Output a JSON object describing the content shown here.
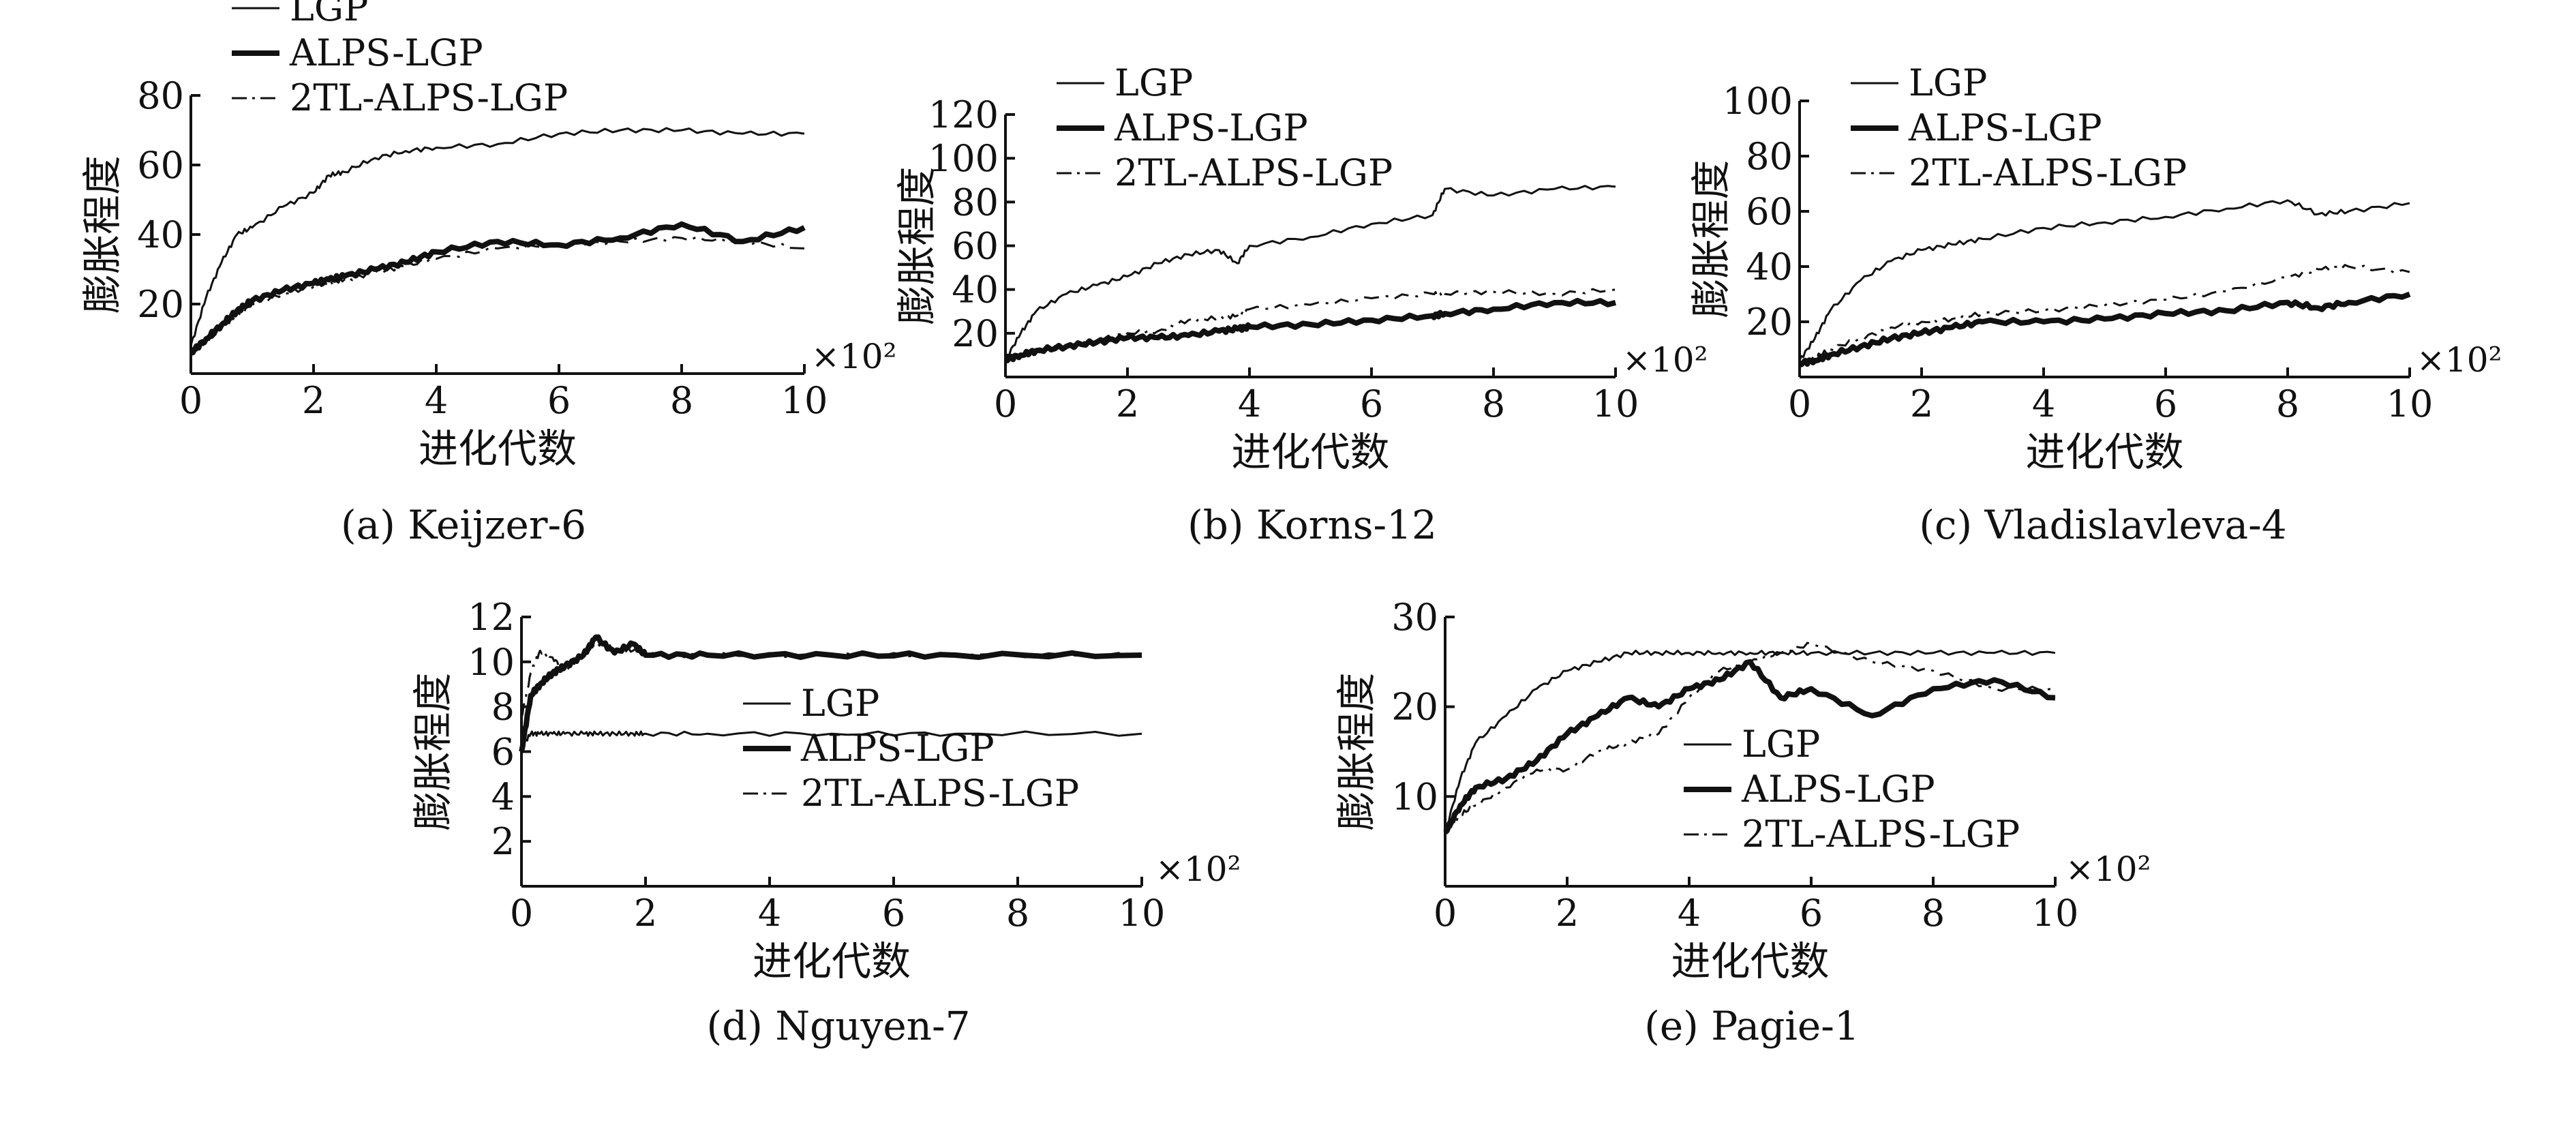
{
  "figure": {
    "x_multiplier": "×10²",
    "legend": [
      "LGP",
      "ALPS-LGP",
      "2TL-ALPS-LGP"
    ]
  },
  "chart_data": [
    {
      "type": "line",
      "caption": "(a) Keijzer-6",
      "xlabel": "进化代数",
      "ylabel": "膨胀程度",
      "xlim": [
        0,
        10
      ],
      "ylim": [
        0,
        80
      ],
      "x_ticks": [
        0,
        2,
        4,
        6,
        8,
        10
      ],
      "y_ticks": [
        20,
        40,
        60,
        80
      ],
      "legend_position": "top-left-outside",
      "x": [
        0,
        0.25,
        0.5,
        0.75,
        1,
        1.5,
        2,
        2.25,
        2.5,
        3,
        3.5,
        4,
        5,
        6,
        7,
        8,
        9,
        10
      ],
      "series": [
        {
          "name": "LGP",
          "values": [
            8,
            22,
            32,
            40,
            42,
            48,
            52,
            57,
            58,
            62,
            64,
            65,
            66,
            69,
            70,
            70,
            69,
            69
          ]
        },
        {
          "name": "ALPS-LGP",
          "values": [
            6,
            10,
            14,
            18,
            21,
            24,
            26,
            27,
            28,
            30,
            32,
            35,
            38,
            37,
            39,
            43,
            38,
            42
          ]
        },
        {
          "name": "2TL-ALPS-LGP",
          "values": [
            6,
            9,
            13,
            17,
            20,
            23,
            25,
            26,
            27,
            29,
            31,
            33,
            36,
            37,
            38,
            39,
            38,
            36
          ]
        }
      ]
    },
    {
      "type": "line",
      "caption": "(b) Korns-12",
      "xlabel": "进化代数",
      "ylabel": "膨胀程度",
      "xlim": [
        0,
        10
      ],
      "ylim": [
        0,
        120
      ],
      "x_ticks": [
        0,
        2,
        4,
        6,
        8,
        10
      ],
      "y_ticks": [
        20,
        40,
        60,
        80,
        100,
        120
      ],
      "legend_position": "top-left",
      "x": [
        0,
        0.25,
        0.5,
        1,
        1.5,
        2,
        2.5,
        3,
        3.5,
        3.8,
        4,
        5,
        6,
        7,
        7.2,
        8,
        9,
        10
      ],
      "series": [
        {
          "name": "LGP",
          "values": [
            8,
            20,
            30,
            38,
            42,
            46,
            52,
            56,
            58,
            52,
            60,
            64,
            70,
            74,
            86,
            83,
            86,
            87
          ]
        },
        {
          "name": "ALPS-LGP",
          "values": [
            8,
            10,
            12,
            14,
            16,
            18,
            18,
            19,
            21,
            22,
            23,
            24,
            26,
            28,
            29,
            31,
            34,
            34
          ]
        },
        {
          "name": "2TL-ALPS-LGP",
          "values": [
            8,
            10,
            12,
            14,
            17,
            20,
            21,
            26,
            27,
            28,
            31,
            33,
            36,
            38,
            38,
            39,
            38,
            40
          ]
        }
      ]
    },
    {
      "type": "line",
      "caption": "(c) Vladislavleva-4",
      "xlabel": "进化代数",
      "ylabel": "膨胀程度",
      "xlim": [
        0,
        10
      ],
      "ylim": [
        0,
        100
      ],
      "x_ticks": [
        0,
        2,
        4,
        6,
        8,
        10
      ],
      "y_ticks": [
        20,
        40,
        60,
        80,
        100
      ],
      "legend_position": "top-left",
      "x": [
        0,
        0.25,
        0.5,
        1,
        1.5,
        2,
        2.5,
        3,
        4,
        5,
        6,
        7,
        8,
        8.5,
        9,
        10
      ],
      "series": [
        {
          "name": "LGP",
          "values": [
            6,
            14,
            24,
            35,
            42,
            46,
            48,
            50,
            54,
            56,
            58,
            61,
            64,
            59,
            60,
            63
          ]
        },
        {
          "name": "ALPS-LGP",
          "values": [
            5,
            6,
            8,
            11,
            14,
            16,
            18,
            20,
            20,
            21,
            23,
            24,
            27,
            25,
            27,
            30
          ]
        },
        {
          "name": "2TL-ALPS-LGP",
          "values": [
            5,
            7,
            10,
            14,
            18,
            20,
            21,
            23,
            24,
            26,
            28,
            31,
            36,
            39,
            40,
            38
          ]
        }
      ]
    },
    {
      "type": "line",
      "caption": "(d) Nguyen-7",
      "xlabel": "进化代数",
      "ylabel": "膨胀程度",
      "xlim": [
        0,
        10
      ],
      "ylim": [
        0,
        12
      ],
      "x_ticks": [
        0,
        2,
        4,
        6,
        8,
        10
      ],
      "y_ticks": [
        2,
        4,
        6,
        8,
        10,
        12
      ],
      "legend_position": "right",
      "x": [
        0,
        0.15,
        0.3,
        0.5,
        0.7,
        1,
        1.2,
        1.5,
        1.8,
        2,
        3,
        5,
        7,
        10
      ],
      "series": [
        {
          "name": "LGP",
          "values": [
            6.2,
            6.8,
            6.8,
            6.8,
            6.8,
            6.8,
            6.8,
            6.8,
            6.8,
            6.8,
            6.8,
            6.8,
            6.8,
            6.8
          ]
        },
        {
          "name": "ALPS-LGP",
          "values": [
            6.0,
            8.5,
            9.0,
            9.5,
            9.8,
            10.3,
            11.1,
            10.4,
            10.8,
            10.3,
            10.3,
            10.3,
            10.3,
            10.3
          ]
        },
        {
          "name": "2TL-ALPS-LGP",
          "values": [
            7.5,
            9.5,
            10.5,
            10.2,
            9.6,
            10.4,
            10.8,
            10.6,
            10.5,
            10.3,
            10.3,
            10.3,
            10.3,
            10.3
          ]
        }
      ]
    },
    {
      "type": "line",
      "caption": "(e) Pagie-1",
      "xlabel": "进化代数",
      "ylabel": "膨胀程度",
      "xlim": [
        0,
        10
      ],
      "ylim": [
        0,
        30
      ],
      "x_ticks": [
        0,
        2,
        4,
        6,
        8,
        10
      ],
      "y_ticks": [
        10,
        20,
        30
      ],
      "legend_position": "center",
      "x": [
        0,
        0.25,
        0.5,
        1,
        1.5,
        2,
        2.5,
        3,
        3.5,
        4,
        4.5,
        5,
        5.5,
        6,
        7,
        8,
        9,
        10
      ],
      "series": [
        {
          "name": "LGP",
          "values": [
            6,
            12,
            16,
            19,
            22,
            24,
            25,
            26,
            26,
            26,
            26,
            26,
            26,
            26,
            26,
            26,
            26,
            26
          ]
        },
        {
          "name": "ALPS-LGP",
          "values": [
            6,
            9,
            11,
            12,
            14,
            17,
            19,
            21,
            20,
            22,
            23,
            25,
            21,
            22,
            19,
            22,
            23,
            21
          ]
        },
        {
          "name": "2TL-ALPS-LGP",
          "values": [
            6,
            8,
            9,
            11,
            13,
            13,
            15,
            16,
            17,
            21,
            24,
            25,
            26,
            27,
            25,
            24,
            22,
            22
          ]
        }
      ]
    }
  ]
}
